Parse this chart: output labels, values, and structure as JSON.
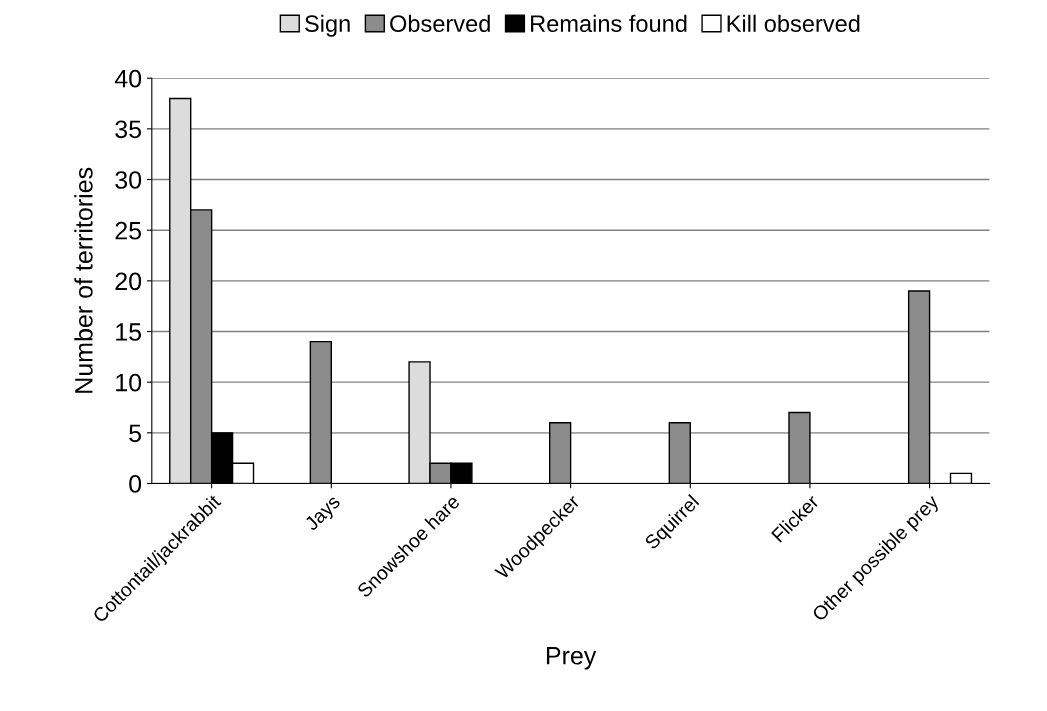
{
  "chart_data": {
    "type": "bar",
    "xlabel": "Prey",
    "ylabel": "Number of territories",
    "categories": [
      "Cottontail/jackrabbit",
      "Jays",
      "Snowshoe hare",
      "Woodpecker",
      "Squirrel",
      "Flicker",
      "Other possible prey"
    ],
    "series": [
      {
        "name": "Sign",
        "color": "#dcdcdc",
        "values": [
          38,
          null,
          12,
          null,
          null,
          null,
          null
        ]
      },
      {
        "name": "Observed",
        "color": "#8c8c8c",
        "values": [
          27,
          14,
          2,
          6,
          6,
          7,
          19
        ]
      },
      {
        "name": "Remains found",
        "color": "#000000",
        "values": [
          5,
          null,
          2,
          null,
          null,
          null,
          null
        ]
      },
      {
        "name": "Kill observed",
        "color": "#ffffff",
        "values": [
          2,
          null,
          null,
          null,
          null,
          null,
          1
        ]
      }
    ],
    "ylim": [
      0,
      40
    ],
    "yticks": [
      0,
      5,
      10,
      15,
      20,
      25,
      30,
      35,
      40
    ],
    "grid": "y",
    "legend": "top"
  }
}
